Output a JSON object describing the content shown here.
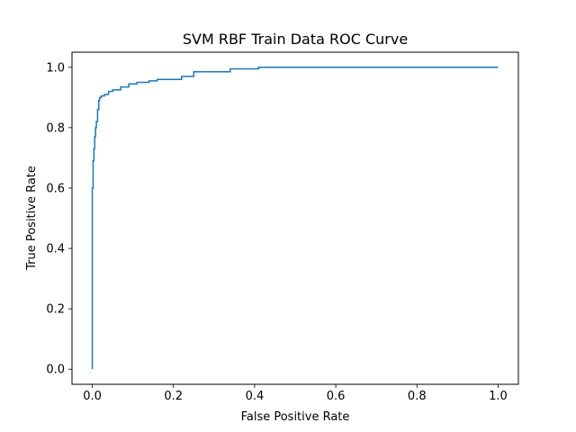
{
  "chart_data": {
    "type": "line",
    "title": "SVM RBF Train Data ROC Curve",
    "xlabel": "False Positive Rate",
    "ylabel": "True Positive Rate",
    "xlim": [
      -0.05,
      1.05
    ],
    "ylim": [
      -0.05,
      1.05
    ],
    "xticks": [
      0.0,
      0.2,
      0.4,
      0.6,
      0.8,
      1.0
    ],
    "yticks": [
      0.0,
      0.2,
      0.4,
      0.6,
      0.8,
      1.0
    ],
    "xtick_labels": [
      "0.0",
      "0.2",
      "0.4",
      "0.6",
      "0.8",
      "1.0"
    ],
    "ytick_labels": [
      "0.0",
      "0.2",
      "0.4",
      "0.6",
      "0.8",
      "1.0"
    ],
    "grid": false,
    "series": [
      {
        "color": "#1f77b4",
        "step": true,
        "x": [
          0.0,
          0.0,
          0.0,
          0.002,
          0.002,
          0.004,
          0.004,
          0.006,
          0.006,
          0.008,
          0.008,
          0.01,
          0.01,
          0.013,
          0.013,
          0.016,
          0.016,
          0.018,
          0.018,
          0.022,
          0.022,
          0.03,
          0.03,
          0.04,
          0.04,
          0.05,
          0.05,
          0.07,
          0.07,
          0.09,
          0.09,
          0.11,
          0.11,
          0.14,
          0.14,
          0.16,
          0.16,
          0.22,
          0.22,
          0.25,
          0.25,
          0.34,
          0.34,
          0.41,
          0.41,
          1.0
        ],
        "y": [
          0.0,
          0.44,
          0.6,
          0.6,
          0.69,
          0.69,
          0.73,
          0.73,
          0.77,
          0.77,
          0.8,
          0.8,
          0.82,
          0.82,
          0.86,
          0.86,
          0.89,
          0.89,
          0.9,
          0.9,
          0.905,
          0.905,
          0.91,
          0.91,
          0.92,
          0.92,
          0.925,
          0.925,
          0.935,
          0.935,
          0.945,
          0.945,
          0.95,
          0.95,
          0.955,
          0.955,
          0.96,
          0.96,
          0.97,
          0.97,
          0.985,
          0.985,
          0.995,
          0.995,
          1.0,
          1.0
        ]
      }
    ]
  }
}
